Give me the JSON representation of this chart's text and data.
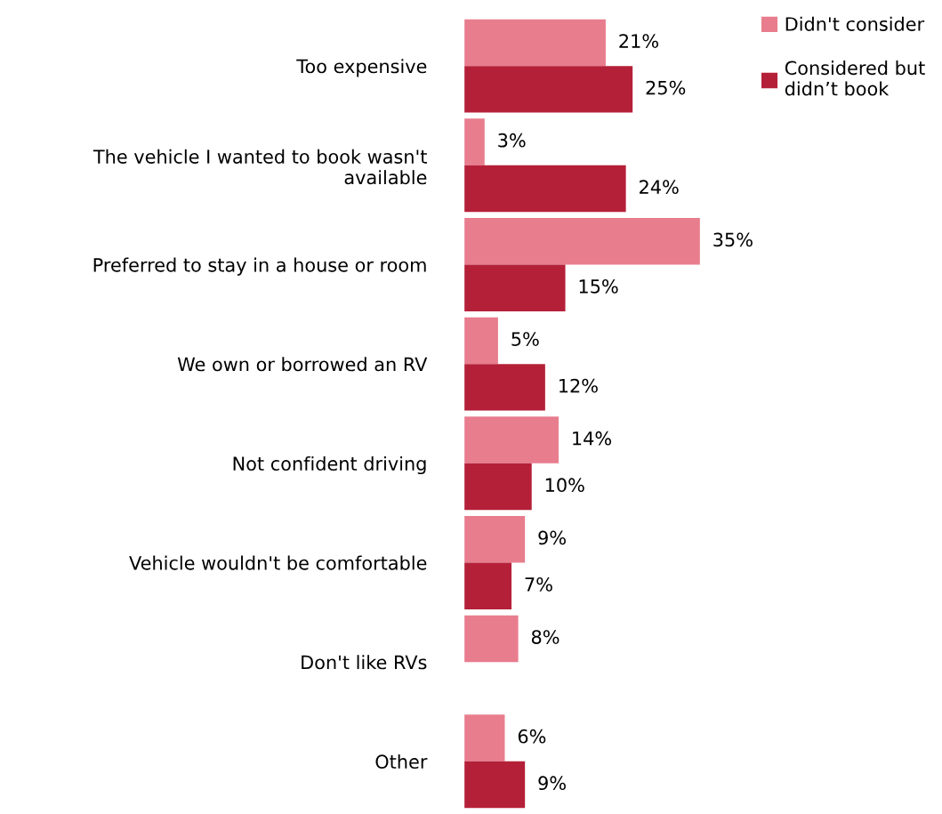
{
  "chart_data": {
    "type": "bar",
    "orientation": "horizontal",
    "tick_labels": "y",
    "legend": "top right",
    "categories": [
      "Too expensive",
      "The vehicle I wanted to book wasn't\navailable",
      "Preferred to stay in a house or room",
      "We own or borrowed an RV",
      "Not confident driving",
      "Vehicle wouldn't be comfortable",
      "Don't like RVs",
      "Other"
    ],
    "series": [
      {
        "name": "Didn't consider",
        "color": "#e87d8e",
        "values": [
          21,
          3,
          35,
          5,
          14,
          9,
          8,
          6
        ],
        "value_labels": [
          "21%",
          "3%",
          "35%",
          "5%",
          "14%",
          "9%",
          "8%",
          "6%"
        ]
      },
      {
        "name": "Considered but\ndidn’t book",
        "color": "#b52039",
        "values": [
          25,
          24,
          15,
          12,
          10,
          7,
          null,
          9
        ],
        "value_labels": [
          "25%",
          "24%",
          "15%",
          "12%",
          "10%",
          "7%",
          null,
          "9%"
        ]
      }
    ]
  }
}
